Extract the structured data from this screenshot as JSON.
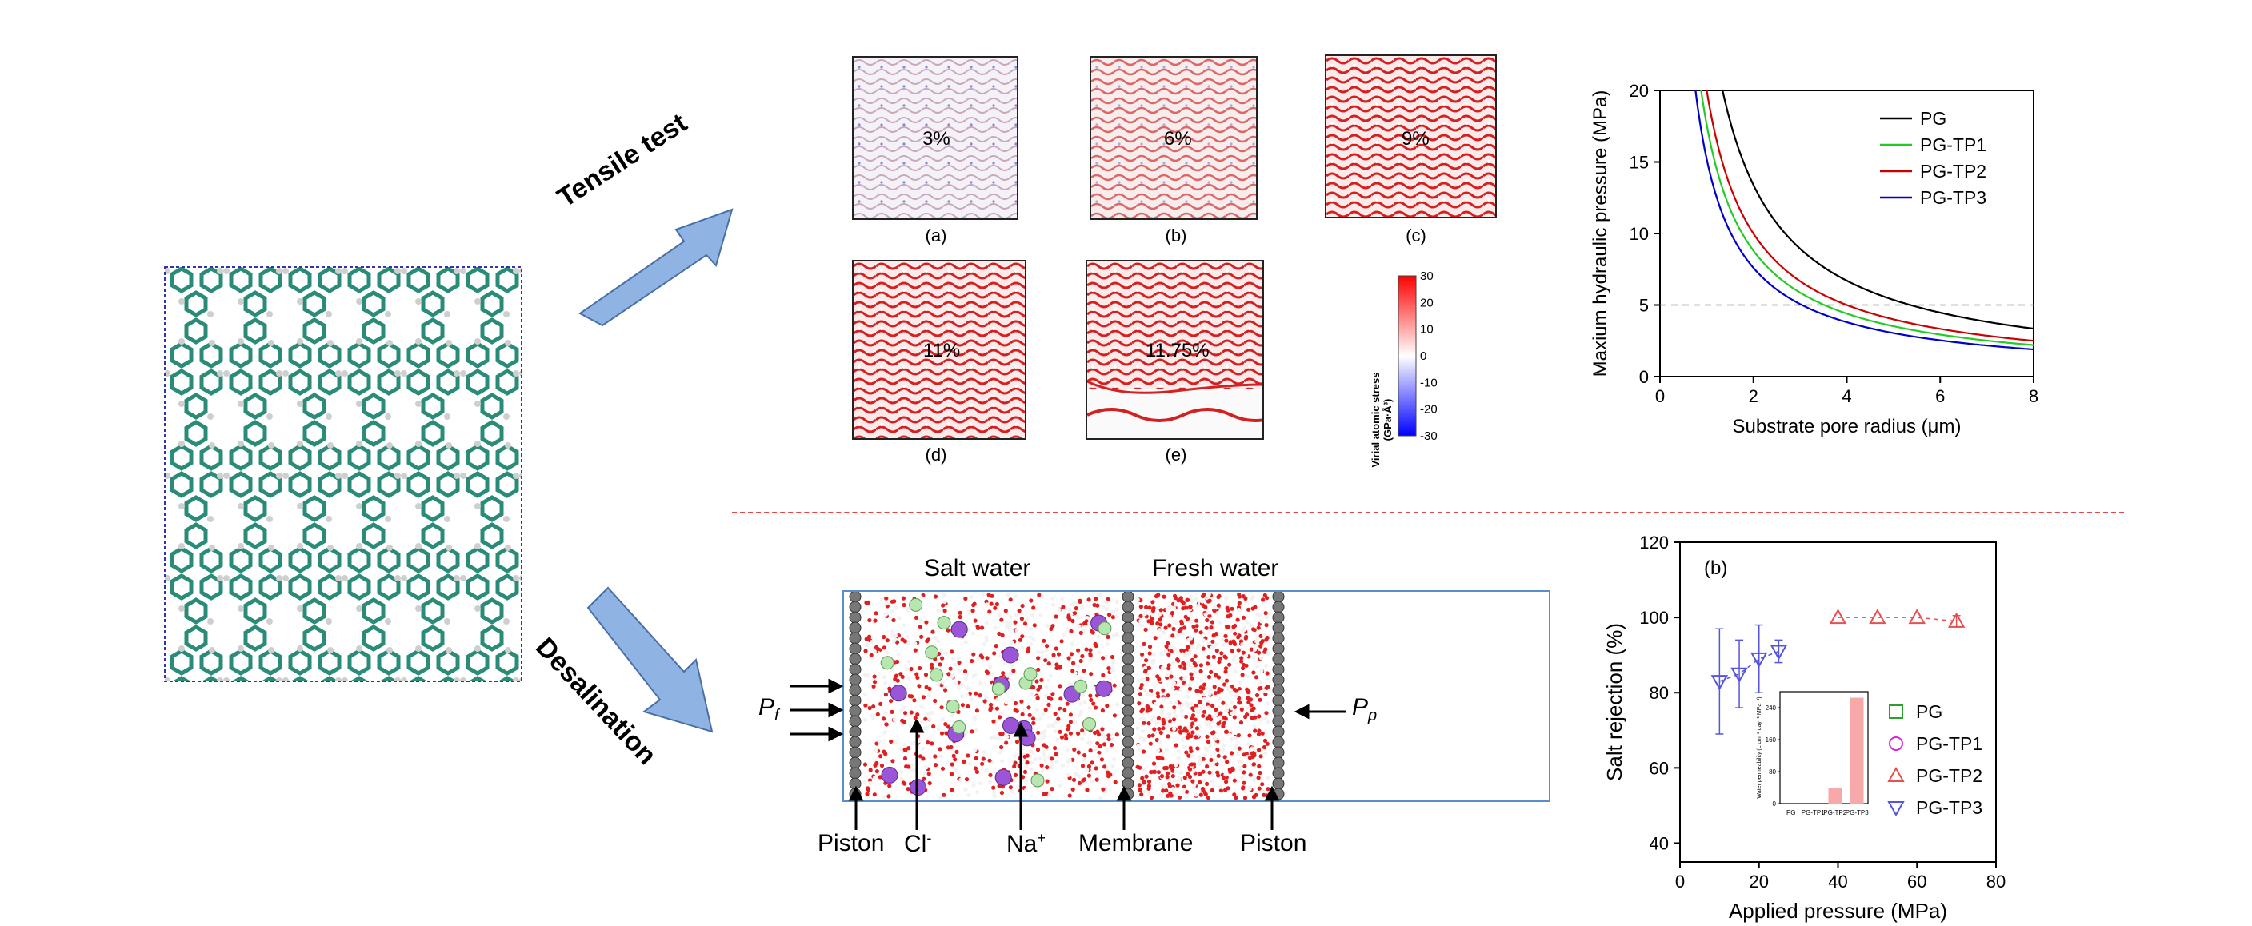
{
  "arrows": {
    "tensile_label": "Tensile test",
    "desal_label": "Desalination"
  },
  "stress_panels": [
    {
      "tag": "(a)",
      "strain": "3%"
    },
    {
      "tag": "(b)",
      "strain": "6%"
    },
    {
      "tag": "(c)",
      "strain": "9%"
    },
    {
      "tag": "(d)",
      "strain": "11%"
    },
    {
      "tag": "(e)",
      "strain": "11.75%"
    }
  ],
  "colorbar": {
    "title_line1": "Virial atomic stress",
    "title_line2": "(GPa·Å³)",
    "ticks": [
      "30",
      "20",
      "10",
      "0",
      "-10",
      "-20",
      "-30"
    ],
    "color_high": "#ff0000",
    "color_low": "#0000ff"
  },
  "simulation": {
    "salt_water": "Salt water",
    "fresh_water": "Fresh water",
    "pf": "P",
    "pf_sub": "f",
    "pp": "P",
    "pp_sub": "p",
    "piston_left": "Piston",
    "cl": "Cl",
    "cl_sup": "-",
    "na": "Na",
    "na_sup": "+",
    "membrane": "Membrane",
    "piston_right": "Piston"
  },
  "chart_data": [
    {
      "type": "line",
      "title": "",
      "xlabel": "Substrate pore radius (μm)",
      "ylabel": "Maxium hydraulic pressure (MPa)",
      "xlim": [
        0,
        8
      ],
      "ylim": [
        0,
        20
      ],
      "xticks": [
        "0",
        "2",
        "4",
        "6",
        "8"
      ],
      "yticks": [
        "0",
        "5",
        "10",
        "15",
        "20"
      ],
      "reference_line": 5,
      "series": [
        {
          "name": "PG",
          "color": "#000000",
          "k": 26.8
        },
        {
          "name": "PG-TP1",
          "color": "#22cc22",
          "k": 17.6
        },
        {
          "name": "PG-TP2",
          "color": "#cc0000",
          "k": 20.0
        },
        {
          "name": "PG-TP3",
          "color": "#0000cc",
          "k": 15.2
        }
      ],
      "legend": "top-right"
    },
    {
      "type": "scatter",
      "panel_tag": "(b)",
      "xlabel": "Applied pressure (MPa)",
      "ylabel": "Salt rejection (%)",
      "xlim": [
        0,
        80
      ],
      "ylim": [
        35,
        120
      ],
      "xticks": [
        "0",
        "20",
        "40",
        "60",
        "80"
      ],
      "yticks": [
        "40",
        "60",
        "80",
        "100",
        "120"
      ],
      "legend": "bottom-right",
      "series": [
        {
          "name": "PG",
          "color": "#2ca02c",
          "marker": "square",
          "points": []
        },
        {
          "name": "PG-TP1",
          "color": "#d62ad6",
          "marker": "circle",
          "points": []
        },
        {
          "name": "PG-TP2",
          "color": "#e8504f",
          "marker": "triangle-up",
          "points": [
            {
              "x": 40,
              "y": 100,
              "err": 0
            },
            {
              "x": 50,
              "y": 100,
              "err": 0
            },
            {
              "x": 60,
              "y": 100,
              "err": 0
            },
            {
              "x": 70,
              "y": 99,
              "err": 1.5
            }
          ]
        },
        {
          "name": "PG-TP3",
          "color": "#5555dd",
          "marker": "triangle-down",
          "points": [
            {
              "x": 10,
              "y": 83,
              "err": 14
            },
            {
              "x": 15,
              "y": 85,
              "err": 9
            },
            {
              "x": 20,
              "y": 89,
              "err": 9
            },
            {
              "x": 25,
              "y": 91,
              "err": 3
            }
          ]
        }
      ]
    },
    {
      "type": "bar",
      "ylabel": "Water permeability (L cm⁻² day⁻¹ MPa⁻¹)",
      "categories": [
        "PG",
        "PG-TP1",
        "PG-TP2",
        "PG-TP3"
      ],
      "values": [
        0,
        0,
        40,
        265
      ],
      "ylim": [
        0,
        280
      ],
      "yticks": [
        "0",
        "80",
        "160",
        "240"
      ],
      "color": "#f7a8a8"
    }
  ]
}
